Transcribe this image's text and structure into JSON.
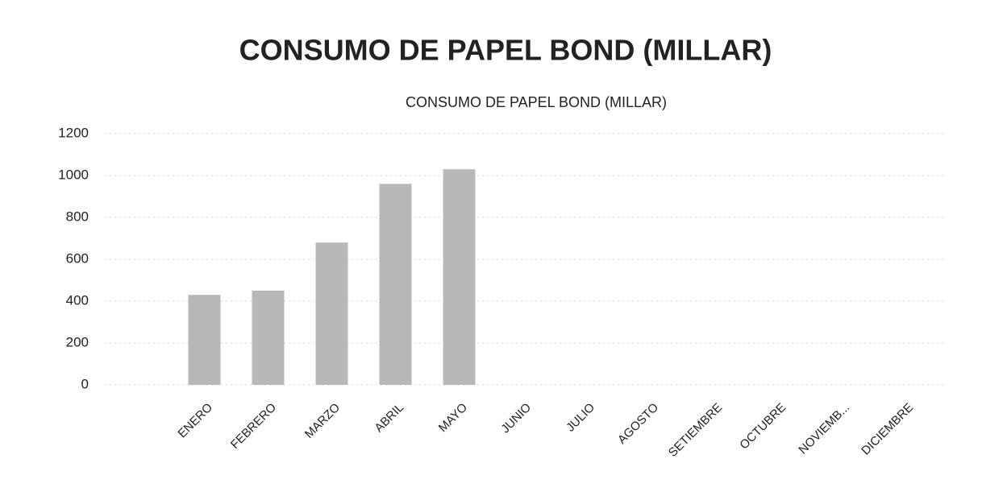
{
  "chart_data": {
    "type": "bar",
    "title": "CONSUMO DE PAPEL BOND (MILLAR)",
    "subtitle": "CONSUMO DE PAPEL BOND (MILLAR)",
    "categories": [
      "ENERO",
      "FEBRERO",
      "MARZO",
      "ABRIL",
      "MAYO",
      "JUNIO",
      "JULIO",
      "AGOSTO",
      "SETIEMBRE",
      "OCTUBRE",
      "NOVIEMB...",
      "DICIEMBRE"
    ],
    "values": [
      430,
      450,
      680,
      960,
      1030,
      null,
      null,
      null,
      null,
      null,
      null,
      null
    ],
    "color": "#b8b8b8",
    "ylim": [
      0,
      1200
    ],
    "yticks": [
      0,
      200,
      400,
      600,
      800,
      1000,
      1200
    ],
    "grid": true
  }
}
